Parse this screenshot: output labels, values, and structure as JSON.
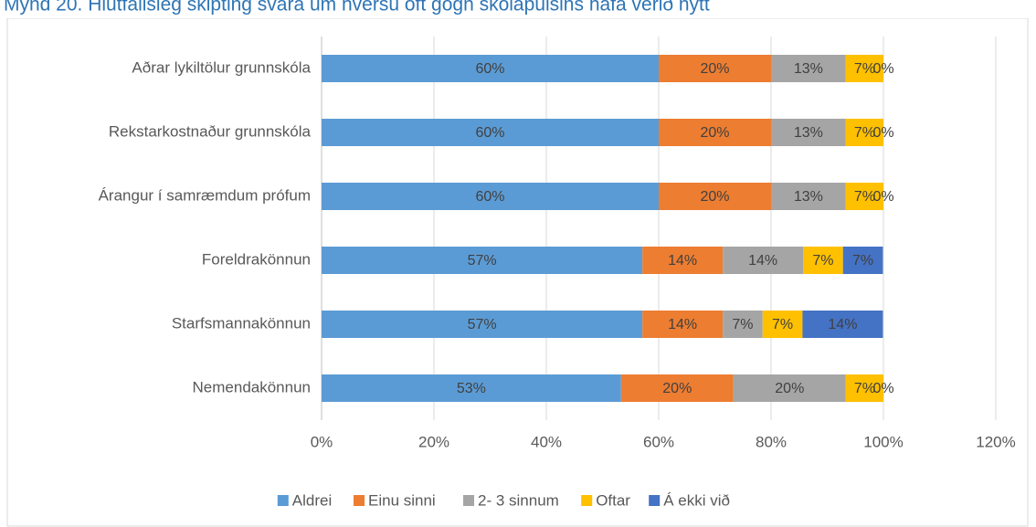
{
  "chart_data": {
    "type": "stacked_barh",
    "title": "Mynd 20. Hlutfallsleg skipting svara um hversu oft gögn skólapúlsins hafa verið nýtt",
    "categories": [
      "Aðrar lykiltölur grunnskóla",
      "Rekstarkostnaður grunnskóla",
      "Árangur í samræmdum prófum",
      "Foreldrakönnun",
      "Starfsmannakönnun",
      "Nemendakönnun"
    ],
    "series": [
      {
        "name": "Aldrei",
        "color": "#5b9bd5",
        "values": [
          60,
          60,
          60,
          57.1,
          57.1,
          53.3
        ],
        "value_labels": [
          "60%",
          "60%",
          "60%",
          "57%",
          "57%",
          "53%"
        ]
      },
      {
        "name": "Einu sinni",
        "color": "#ed7d31",
        "values": [
          20,
          20,
          20,
          14.3,
          14.3,
          20
        ],
        "value_labels": [
          "20%",
          "20%",
          "20%",
          "14%",
          "14%",
          "20%"
        ]
      },
      {
        "name": "2- 3 sinnum",
        "color": "#a5a5a5",
        "values": [
          13.3,
          13.3,
          13.3,
          14.3,
          7.1,
          20
        ],
        "value_labels": [
          "13%",
          "13%",
          "13%",
          "14%",
          "7%",
          "20%"
        ]
      },
      {
        "name": "Oftar",
        "color": "#ffc000",
        "values": [
          6.7,
          6.7,
          6.7,
          7.1,
          7.1,
          6.7
        ],
        "value_labels": [
          "7%",
          "7%",
          "7%",
          "7%",
          "7%",
          "7%"
        ]
      },
      {
        "name": "Á ekki við",
        "color": "#4472c4",
        "values": [
          0,
          0,
          0,
          7.1,
          14.3,
          0
        ],
        "value_labels": [
          "0%",
          "0%",
          "0%",
          "7%",
          "14%",
          "0%"
        ]
      }
    ],
    "xlim": [
      0,
      120
    ],
    "xticks": [
      {
        "value": 0,
        "label": "0%"
      },
      {
        "value": 20,
        "label": "20%"
      },
      {
        "value": 40,
        "label": "40%"
      },
      {
        "value": 60,
        "label": "60%"
      },
      {
        "value": 80,
        "label": "80%"
      },
      {
        "value": 100,
        "label": "100%"
      },
      {
        "value": 120,
        "label": "120%"
      }
    ],
    "grid": true,
    "legend": "bottom"
  }
}
